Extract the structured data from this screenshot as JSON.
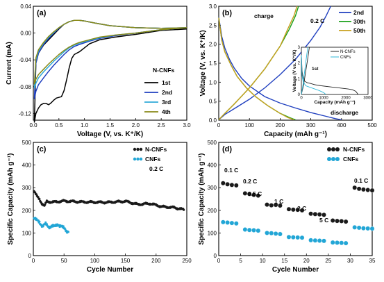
{
  "chart_data": [
    {
      "panel": "(a)",
      "type": "line",
      "xlabel": "Voltage (V, vs. K⁺/K)",
      "ylabel": "Current (mA)",
      "xlim": [
        0.0,
        3.0
      ],
      "ylim": [
        -0.13,
        0.04
      ],
      "xticks": [
        "0.0",
        "0.5",
        "1.0",
        "1.5",
        "2.0",
        "2.5",
        "3.0"
      ],
      "yticks": [
        "-0.12",
        "-0.08",
        "-0.04",
        "0.00",
        "0.04"
      ],
      "legend_title": "N-CNFs",
      "legend": "middle-right",
      "series": [
        {
          "name": "1st",
          "color": "#000000",
          "x": [
            3.0,
            2.5,
            2.0,
            1.6,
            1.3,
            1.1,
            1.0,
            0.9,
            0.8,
            0.75,
            0.7,
            0.65,
            0.6,
            0.55,
            0.5,
            0.45,
            0.4,
            0.35,
            0.3,
            0.25,
            0.2,
            0.15,
            0.1,
            0.05,
            0.02,
            0.05,
            0.1,
            0.2,
            0.3,
            0.4,
            0.5,
            0.6,
            0.7,
            0.8,
            0.9,
            1.0,
            1.2,
            1.5,
            2.0,
            2.5,
            3.0
          ],
          "y": [
            0.006,
            0.004,
            -0.002,
            -0.006,
            -0.01,
            -0.016,
            -0.022,
            -0.028,
            -0.032,
            -0.038,
            -0.052,
            -0.07,
            -0.086,
            -0.095,
            -0.096,
            -0.097,
            -0.1,
            -0.104,
            -0.107,
            -0.105,
            -0.105,
            -0.107,
            -0.112,
            -0.12,
            -0.133,
            -0.045,
            -0.03,
            -0.018,
            -0.01,
            -0.002,
            0.006,
            0.013,
            0.017,
            0.019,
            0.019,
            0.018,
            0.015,
            0.011,
            0.008,
            0.007,
            0.007
          ]
        },
        {
          "name": "2nd",
          "color": "#1f3fbf",
          "x": [
            3.0,
            2.5,
            2.0,
            1.6,
            1.3,
            1.1,
            0.9,
            0.8,
            0.7,
            0.6,
            0.5,
            0.4,
            0.3,
            0.2,
            0.1,
            0.05,
            0.02,
            0.05,
            0.1,
            0.2,
            0.3,
            0.4,
            0.5,
            0.6,
            0.7,
            0.8,
            0.9,
            1.0,
            1.2,
            1.5,
            2.0,
            2.5,
            3.0
          ],
          "y": [
            0.008,
            0.005,
            0.0,
            -0.004,
            -0.008,
            -0.012,
            -0.017,
            -0.02,
            -0.025,
            -0.032,
            -0.04,
            -0.048,
            -0.057,
            -0.067,
            -0.077,
            -0.087,
            -0.098,
            -0.045,
            -0.03,
            -0.017,
            -0.008,
            0.0,
            0.007,
            0.013,
            0.017,
            0.019,
            0.019,
            0.018,
            0.015,
            0.011,
            0.008,
            0.007,
            0.008
          ]
        },
        {
          "name": "3rd",
          "color": "#2fa9d8",
          "x": [
            3.0,
            2.5,
            2.0,
            1.6,
            1.3,
            1.1,
            0.9,
            0.8,
            0.7,
            0.6,
            0.5,
            0.4,
            0.3,
            0.2,
            0.1,
            0.05,
            0.02,
            0.05,
            0.1,
            0.2,
            0.3,
            0.4,
            0.5,
            0.6,
            0.7,
            0.8,
            0.9,
            1.0,
            1.2,
            1.5,
            2.0,
            2.5,
            3.0
          ],
          "y": [
            0.008,
            0.005,
            0.0,
            -0.003,
            -0.007,
            -0.011,
            -0.015,
            -0.018,
            -0.022,
            -0.028,
            -0.035,
            -0.042,
            -0.05,
            -0.058,
            -0.067,
            -0.075,
            -0.082,
            -0.04,
            -0.027,
            -0.015,
            -0.006,
            0.001,
            0.008,
            0.013,
            0.017,
            0.019,
            0.019,
            0.018,
            0.015,
            0.011,
            0.008,
            0.007,
            0.008
          ]
        },
        {
          "name": "4th",
          "color": "#8a8a18",
          "x": [
            3.0,
            2.5,
            2.0,
            1.6,
            1.3,
            1.1,
            0.9,
            0.8,
            0.7,
            0.6,
            0.5,
            0.4,
            0.3,
            0.2,
            0.1,
            0.05,
            0.02,
            0.05,
            0.1,
            0.2,
            0.3,
            0.4,
            0.5,
            0.6,
            0.7,
            0.8,
            0.9,
            1.0,
            1.2,
            1.5,
            2.0,
            2.5,
            3.0
          ],
          "y": [
            0.008,
            0.005,
            0.0,
            -0.003,
            -0.006,
            -0.01,
            -0.014,
            -0.017,
            -0.021,
            -0.026,
            -0.032,
            -0.039,
            -0.046,
            -0.054,
            -0.062,
            -0.069,
            -0.076,
            -0.037,
            -0.025,
            -0.014,
            -0.005,
            0.002,
            0.008,
            0.013,
            0.017,
            0.019,
            0.019,
            0.018,
            0.015,
            0.011,
            0.008,
            0.007,
            0.008
          ]
        }
      ]
    },
    {
      "panel": "(b)",
      "type": "line",
      "xlabel": "Capacity (mAh g⁻¹)",
      "ylabel": "Voltage (V, vs. K⁺/K)",
      "xlim": [
        0,
        500
      ],
      "ylim": [
        0.0,
        3.0
      ],
      "xticks": [
        "0",
        "100",
        "200",
        "300",
        "400",
        "500"
      ],
      "yticks": [
        "0.0",
        "0.5",
        "1.0",
        "1.5",
        "2.0",
        "2.5",
        "3.0"
      ],
      "annotations": [
        "charge",
        "0.2 C",
        "discharge"
      ],
      "legend": "top-right",
      "series": [
        {
          "name": "2nd",
          "color": "#1f3fbf",
          "discharge": {
            "x": [
              0,
              10,
              20,
              35,
              50,
              75,
              100,
              150,
              200,
              250,
              300,
              350,
              380,
              400
            ],
            "y": [
              2.72,
              2.2,
              1.9,
              1.6,
              1.38,
              1.1,
              0.9,
              0.62,
              0.45,
              0.32,
              0.2,
              0.1,
              0.04,
              0.01
            ]
          },
          "charge": {
            "x": [
              0,
              20,
              50,
              100,
              150,
              200,
              250,
              300,
              330,
              350,
              365
            ],
            "y": [
              0.01,
              0.15,
              0.3,
              0.55,
              0.85,
              1.2,
              1.6,
              2.1,
              2.45,
              2.75,
              3.0
            ]
          }
        },
        {
          "name": "30th",
          "color": "#1aa01a",
          "discharge": {
            "x": [
              0,
              10,
              20,
              40,
              60,
              90,
              120,
              160,
              200,
              230,
              250
            ],
            "y": [
              2.7,
              2.1,
              1.8,
              1.45,
              1.15,
              0.85,
              0.62,
              0.38,
              0.18,
              0.07,
              0.01
            ]
          },
          "charge": {
            "x": [
              0,
              20,
              50,
              100,
              150,
              200,
              230,
              250,
              260
            ],
            "y": [
              0.01,
              0.18,
              0.42,
              0.85,
              1.35,
              1.95,
              2.4,
              2.75,
              3.0
            ]
          }
        },
        {
          "name": "50th",
          "color": "#c8a01e",
          "discharge": {
            "x": [
              0,
              10,
              20,
              40,
              60,
              90,
              120,
              160,
              200,
              225,
              245
            ],
            "y": [
              2.7,
              2.1,
              1.8,
              1.45,
              1.15,
              0.85,
              0.62,
              0.38,
              0.18,
              0.07,
              0.01
            ]
          },
          "charge": {
            "x": [
              0,
              20,
              50,
              100,
              150,
              200,
              225,
              245,
              255
            ],
            "y": [
              0.01,
              0.18,
              0.42,
              0.85,
              1.35,
              1.95,
              2.4,
              2.75,
              3.0
            ]
          }
        }
      ],
      "inset": {
        "annotation": "1st",
        "xlabel": "Capacity (mAh g⁻¹)",
        "ylabel": "Voltage (V vs. K⁺/K)",
        "xlim": [
          0,
          3000
        ],
        "ylim": [
          0,
          3
        ],
        "xticks": [
          "0",
          "1000",
          "2000",
          "3000"
        ],
        "yticks": [
          "0",
          "1",
          "2",
          "3"
        ],
        "series": [
          {
            "name": "N-CNFs",
            "color": "#222222",
            "discharge": {
              "x": [
                0,
                30,
                80,
                150,
                250,
                400,
                600,
                900,
                1200,
                1500,
                1800,
                2100,
                2300,
                2450,
                2550
              ],
              "y": [
                2.5,
                1.5,
                1.0,
                0.85,
                0.75,
                0.7,
                0.62,
                0.55,
                0.5,
                0.45,
                0.4,
                0.35,
                0.3,
                0.2,
                0.01
              ]
            },
            "charge": {
              "x": [
                0,
                100,
                200,
                300,
                360
              ],
              "y": [
                0.01,
                0.6,
                1.5,
                2.4,
                3.0
              ]
            }
          },
          {
            "name": "CNFs",
            "color": "#2fb8d8",
            "discharge": {
              "x": [
                0,
                30,
                80,
                200,
                400,
                600,
                800,
                1000,
                1100
              ],
              "y": [
                2.5,
                1.2,
                0.8,
                0.55,
                0.45,
                0.35,
                0.25,
                0.12,
                0.01
              ]
            },
            "charge": {
              "x": [
                0,
                80,
                160,
                240,
                290
              ],
              "y": [
                0.01,
                0.7,
                1.6,
                2.5,
                3.0
              ]
            }
          }
        ]
      }
    },
    {
      "panel": "(c)",
      "type": "scatter",
      "xlabel": "Cycle Number",
      "ylabel": "Specific Capacity (mAh g⁻¹)",
      "xlim": [
        0,
        250
      ],
      "ylim": [
        0,
        500
      ],
      "xticks": [
        "0",
        "50",
        "100",
        "150",
        "200",
        "250"
      ],
      "yticks": [
        "0",
        "100",
        "200",
        "300",
        "400",
        "500"
      ],
      "annotation": "0.2 C",
      "legend": "top-right",
      "series": [
        {
          "name": "N-CNFs",
          "color": "#1a1a1a",
          "anchors_x": [
            1,
            3,
            6,
            10,
            14,
            18,
            22,
            30,
            50,
            80,
            100,
            120,
            150,
            170,
            190,
            210,
            230,
            245
          ],
          "anchors_y": [
            285,
            275,
            262,
            250,
            230,
            218,
            240,
            236,
            241,
            237,
            236,
            235,
            240,
            226,
            230,
            216,
            212,
            203
          ]
        },
        {
          "name": "CNFs",
          "color": "#22a6d6",
          "anchors_x": [
            1,
            5,
            10,
            15,
            20,
            25,
            30,
            35,
            40,
            45,
            50,
            54,
            57
          ],
          "anchors_y": [
            165,
            155,
            150,
            130,
            138,
            128,
            132,
            126,
            140,
            132,
            118,
            108,
            110
          ]
        }
      ]
    },
    {
      "panel": "(d)",
      "type": "scatter",
      "xlabel": "Cycle Number",
      "ylabel": "Specific Capacity (mAh g⁻¹)",
      "xlim": [
        0,
        35
      ],
      "ylim": [
        0,
        500
      ],
      "xticks": [
        "0",
        "5",
        "10",
        "15",
        "20",
        "25",
        "30",
        "35"
      ],
      "yticks": [
        "0",
        "100",
        "200",
        "300",
        "400",
        "500"
      ],
      "legend": "top-right",
      "rate_labels": [
        "0.1 C",
        "0.2 C",
        "0.5 C",
        "1 C",
        "2 C",
        "5 C",
        "0.1 C"
      ],
      "series": [
        {
          "name": "N-CNFs",
          "color": "#1a1a1a",
          "x": [
            1,
            2,
            3,
            4,
            6,
            7,
            8,
            9,
            11,
            12,
            13,
            14,
            16,
            17,
            18,
            19,
            21,
            22,
            23,
            24,
            26,
            27,
            28,
            29,
            31,
            32,
            33,
            34,
            35
          ],
          "y": [
            320,
            315,
            312,
            310,
            275,
            272,
            268,
            265,
            225,
            222,
            224,
            221,
            205,
            203,
            202,
            200,
            185,
            183,
            182,
            180,
            155,
            153,
            152,
            150,
            300,
            295,
            292,
            290,
            288
          ]
        },
        {
          "name": "CNFs",
          "color": "#22a6d6",
          "x": [
            1,
            2,
            3,
            4,
            6,
            7,
            8,
            9,
            11,
            12,
            13,
            14,
            16,
            17,
            18,
            19,
            21,
            22,
            23,
            24,
            26,
            27,
            28,
            29,
            31,
            32,
            33,
            34,
            35
          ],
          "y": [
            148,
            146,
            144,
            142,
            115,
            113,
            112,
            110,
            100,
            99,
            97,
            95,
            82,
            81,
            80,
            79,
            68,
            67,
            66,
            65,
            58,
            57,
            56,
            55,
            125,
            123,
            121,
            120,
            119
          ]
        }
      ]
    }
  ]
}
